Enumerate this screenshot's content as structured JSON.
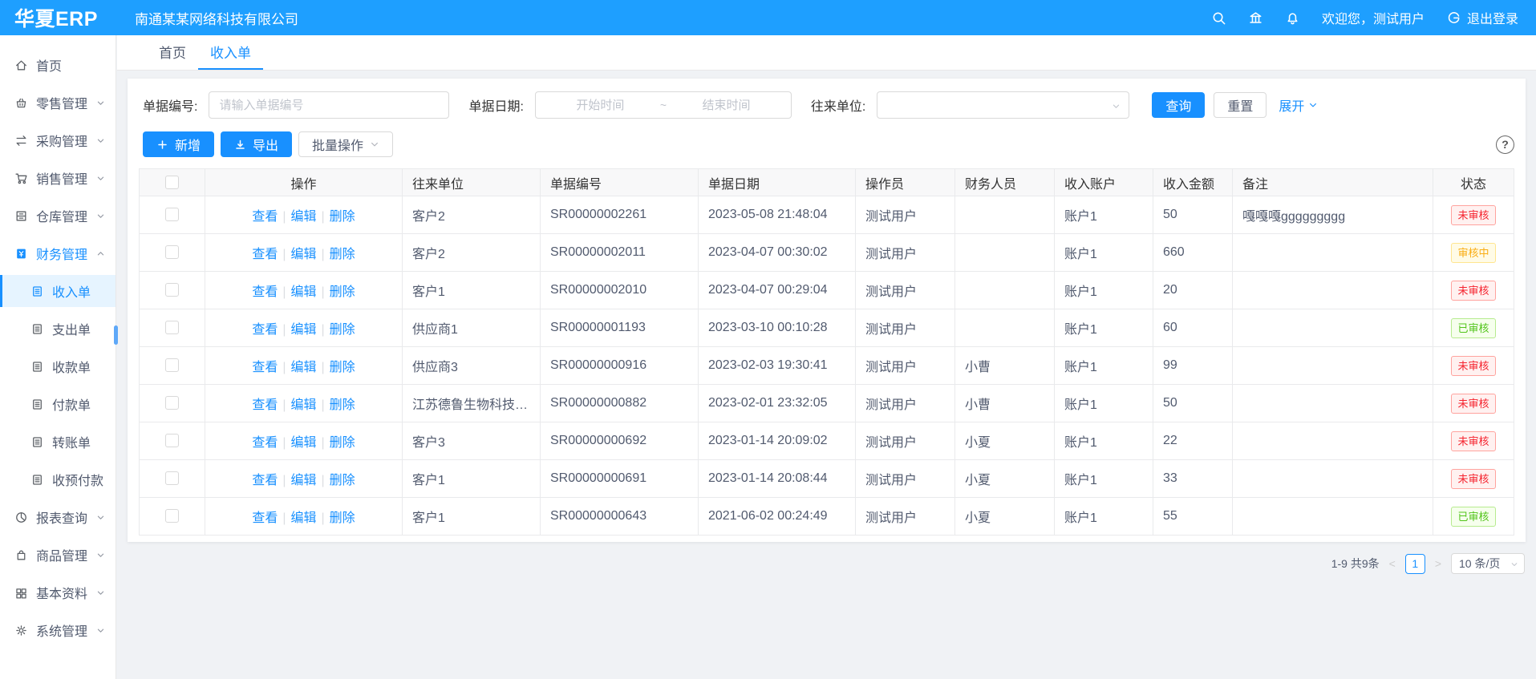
{
  "header": {
    "logo": "华夏ERP",
    "company": "南通某某网络科技有限公司",
    "welcome": "欢迎您，测试用户",
    "logout": "退出登录"
  },
  "sidebar": {
    "items": [
      {
        "icon": "home-icon",
        "label": "首页",
        "chevron": "none"
      },
      {
        "icon": "retail-icon",
        "label": "零售管理",
        "chevron": "down"
      },
      {
        "icon": "purchase-icon",
        "label": "采购管理",
        "chevron": "down"
      },
      {
        "icon": "sales-icon",
        "label": "销售管理",
        "chevron": "down"
      },
      {
        "icon": "warehouse-icon",
        "label": "仓库管理",
        "chevron": "down"
      },
      {
        "icon": "finance-icon",
        "label": "财务管理",
        "chevron": "up",
        "active": true,
        "children": [
          {
            "icon": "doc-icon",
            "label": "收入单",
            "active": true
          },
          {
            "icon": "doc-icon",
            "label": "支出单"
          },
          {
            "icon": "doc-icon",
            "label": "收款单"
          },
          {
            "icon": "doc-icon",
            "label": "付款单"
          },
          {
            "icon": "doc-icon",
            "label": "转账单"
          },
          {
            "icon": "doc-icon",
            "label": "收预付款"
          }
        ]
      },
      {
        "icon": "report-icon",
        "label": "报表查询",
        "chevron": "down"
      },
      {
        "icon": "goods-icon",
        "label": "商品管理",
        "chevron": "down"
      },
      {
        "icon": "basedata-icon",
        "label": "基本资料",
        "chevron": "down"
      },
      {
        "icon": "system-icon",
        "label": "系统管理",
        "chevron": "down"
      }
    ]
  },
  "tabs": [
    {
      "label": "首页",
      "active": false
    },
    {
      "label": "收入单",
      "active": true
    }
  ],
  "filters": {
    "doc_no_label": "单据编号:",
    "doc_no_placeholder": "请输入单据编号",
    "date_label": "单据日期:",
    "date_start_placeholder": "开始时间",
    "date_separator": "~",
    "date_end_placeholder": "结束时间",
    "partner_label": "往来单位:",
    "partner_value": "",
    "search_label": "查询",
    "reset_label": "重置",
    "expand_label": "展开"
  },
  "toolbar": {
    "add_label": "新增",
    "export_label": "导出",
    "batch_label": "批量操作",
    "help_label": "?"
  },
  "table": {
    "columns": [
      {
        "key": "_cb",
        "label": ""
      },
      {
        "key": "_actions",
        "label": "操作"
      },
      {
        "key": "partner",
        "label": "往来单位"
      },
      {
        "key": "no",
        "label": "单据编号"
      },
      {
        "key": "date",
        "label": "单据日期"
      },
      {
        "key": "operator",
        "label": "操作员"
      },
      {
        "key": "finance",
        "label": "财务人员"
      },
      {
        "key": "account",
        "label": "收入账户"
      },
      {
        "key": "amount",
        "label": "收入金额"
      },
      {
        "key": "remark",
        "label": "备注"
      },
      {
        "key": "status",
        "label": "状态"
      }
    ],
    "action_labels": [
      "查看",
      "编辑",
      "删除"
    ],
    "rows": [
      {
        "partner": "客户2",
        "no": "SR00000002261",
        "date": "2023-05-08 21:48:04",
        "operator": "测试用户",
        "finance": "",
        "account": "账户1",
        "amount": "50",
        "remark": "嘎嘎嘎ggggggggg",
        "status": "未审核",
        "status_type": "red"
      },
      {
        "partner": "客户2",
        "no": "SR00000002011",
        "date": "2023-04-07 00:30:02",
        "operator": "测试用户",
        "finance": "",
        "account": "账户1",
        "amount": "660",
        "remark": "",
        "status": "审核中",
        "status_type": "orange"
      },
      {
        "partner": "客户1",
        "no": "SR00000002010",
        "date": "2023-04-07 00:29:04",
        "operator": "测试用户",
        "finance": "",
        "account": "账户1",
        "amount": "20",
        "remark": "",
        "status": "未审核",
        "status_type": "red"
      },
      {
        "partner": "供应商1",
        "no": "SR00000001193",
        "date": "2023-03-10 00:10:28",
        "operator": "测试用户",
        "finance": "",
        "account": "账户1",
        "amount": "60",
        "remark": "",
        "status": "已审核",
        "status_type": "green"
      },
      {
        "partner": "供应商3",
        "no": "SR00000000916",
        "date": "2023-02-03 19:30:41",
        "operator": "测试用户",
        "finance": "小曹",
        "account": "账户1",
        "amount": "99",
        "remark": "",
        "status": "未审核",
        "status_type": "red"
      },
      {
        "partner": "江苏德鲁生物科技有限...",
        "no": "SR00000000882",
        "date": "2023-02-01 23:32:05",
        "operator": "测试用户",
        "finance": "小曹",
        "account": "账户1",
        "amount": "50",
        "remark": "",
        "status": "未审核",
        "status_type": "red"
      },
      {
        "partner": "客户3",
        "no": "SR00000000692",
        "date": "2023-01-14 20:09:02",
        "operator": "测试用户",
        "finance": "小夏",
        "account": "账户1",
        "amount": "22",
        "remark": "",
        "status": "未审核",
        "status_type": "red"
      },
      {
        "partner": "客户1",
        "no": "SR00000000691",
        "date": "2023-01-14 20:08:44",
        "operator": "测试用户",
        "finance": "小夏",
        "account": "账户1",
        "amount": "33",
        "remark": "",
        "status": "未审核",
        "status_type": "red"
      },
      {
        "partner": "客户1",
        "no": "SR00000000643",
        "date": "2021-06-02 00:24:49",
        "operator": "测试用户",
        "finance": "小夏",
        "account": "账户1",
        "amount": "55",
        "remark": "",
        "status": "已审核",
        "status_type": "green"
      }
    ]
  },
  "pagination": {
    "total": "1-9 共9条",
    "prev": "<",
    "page": "1",
    "next": ">",
    "page_size": "10 条/页"
  },
  "colors": {
    "header_bg": "#1e9fff",
    "accent": "#1890ff",
    "status_unaudited": "#f5222d",
    "status_auditing": "#faad14",
    "status_audited": "#52c41a"
  }
}
